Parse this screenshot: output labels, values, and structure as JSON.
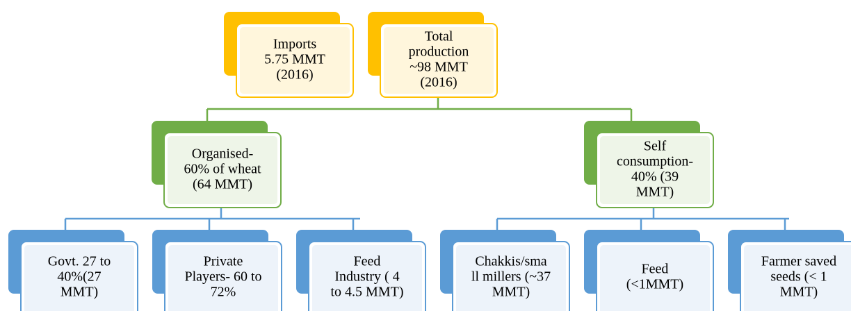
{
  "nodes": [
    {
      "lines": [
        "Imports",
        "5.75 MMT",
        "(2016)"
      ]
    },
    {
      "lines": [
        "Total",
        "production",
        "~98 MMT",
        "(2016)"
      ]
    },
    {
      "lines": [
        "Organised-",
        "60% of wheat",
        "(64 MMT)"
      ]
    },
    {
      "lines": [
        "Self",
        "consumption-",
        "40% (39",
        "MMT)"
      ]
    },
    {
      "lines": [
        "Govt. 27 to",
        "40%(27",
        "MMT)"
      ]
    },
    {
      "lines": [
        "Private",
        "Players- 60 to",
        "72%"
      ]
    },
    {
      "lines": [
        "Feed",
        "Industry ( 4",
        "to 4.5 MMT)"
      ]
    },
    {
      "lines": [
        "Chakkis/sma",
        "ll millers (~37",
        "MMT)"
      ]
    },
    {
      "lines": [
        "Feed",
        "(<1MMT)"
      ]
    },
    {
      "lines": [
        "Farmer saved",
        "seeds (< 1",
        "MMT)"
      ]
    }
  ]
}
